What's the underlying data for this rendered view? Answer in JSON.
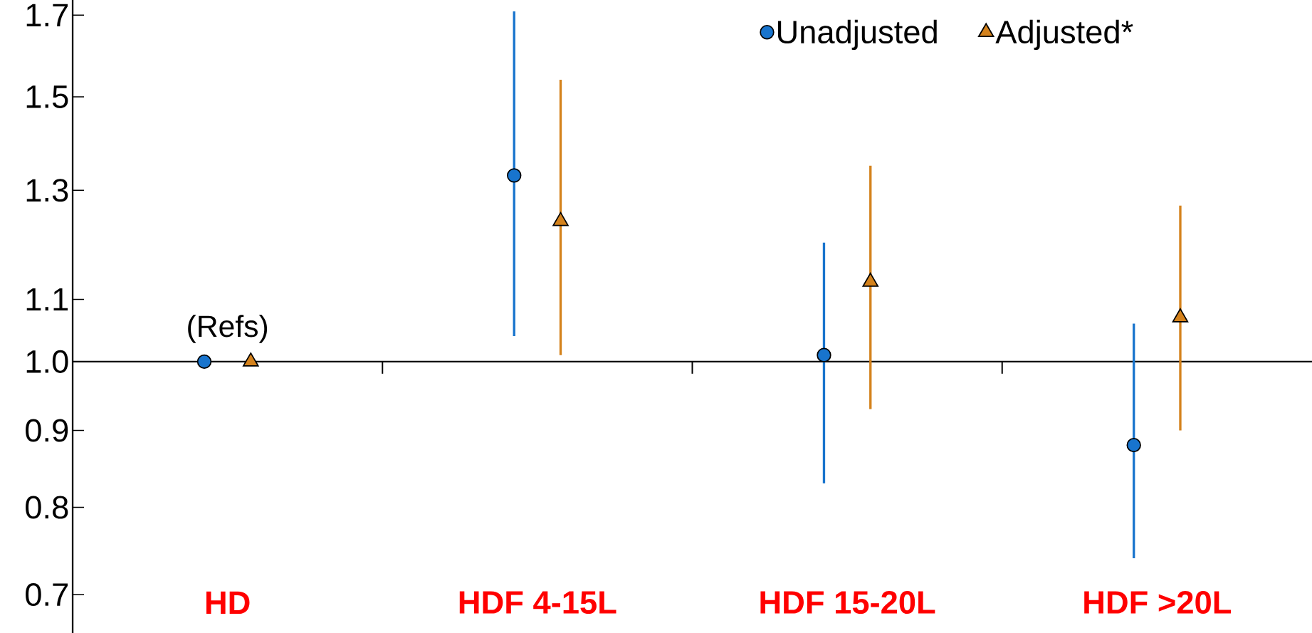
{
  "chart_data": {
    "type": "scatter",
    "categories": [
      "HD",
      "HDF 4-15L",
      "HDF 15-20L",
      "HDF >20L"
    ],
    "series": [
      {
        "name": "Unadjusted",
        "color": "#1874cd",
        "marker": "circle",
        "values": [
          1.0,
          1.33,
          1.01,
          0.88
        ],
        "errors": [
          null,
          [
            1.04,
            1.71
          ],
          [
            0.83,
            1.2
          ],
          [
            0.74,
            1.06
          ]
        ]
      },
      {
        "name": "Adjusted*",
        "color": "#d4821c",
        "marker": "triangle",
        "values": [
          1.0,
          1.24,
          1.13,
          1.07
        ],
        "errors": [
          null,
          [
            1.01,
            1.54
          ],
          [
            0.93,
            1.35
          ],
          [
            0.9,
            1.27
          ]
        ]
      }
    ],
    "log": "y",
    "ylim": [
      0.66,
      1.74
    ],
    "yticks": [
      0.7,
      0.8,
      0.9,
      {
        "value": 1.0,
        "label": "1.0"
      },
      1.1,
      1.3,
      1.5,
      1.7
    ],
    "annotations": [
      "(Refs)"
    ],
    "legend": "top right"
  }
}
